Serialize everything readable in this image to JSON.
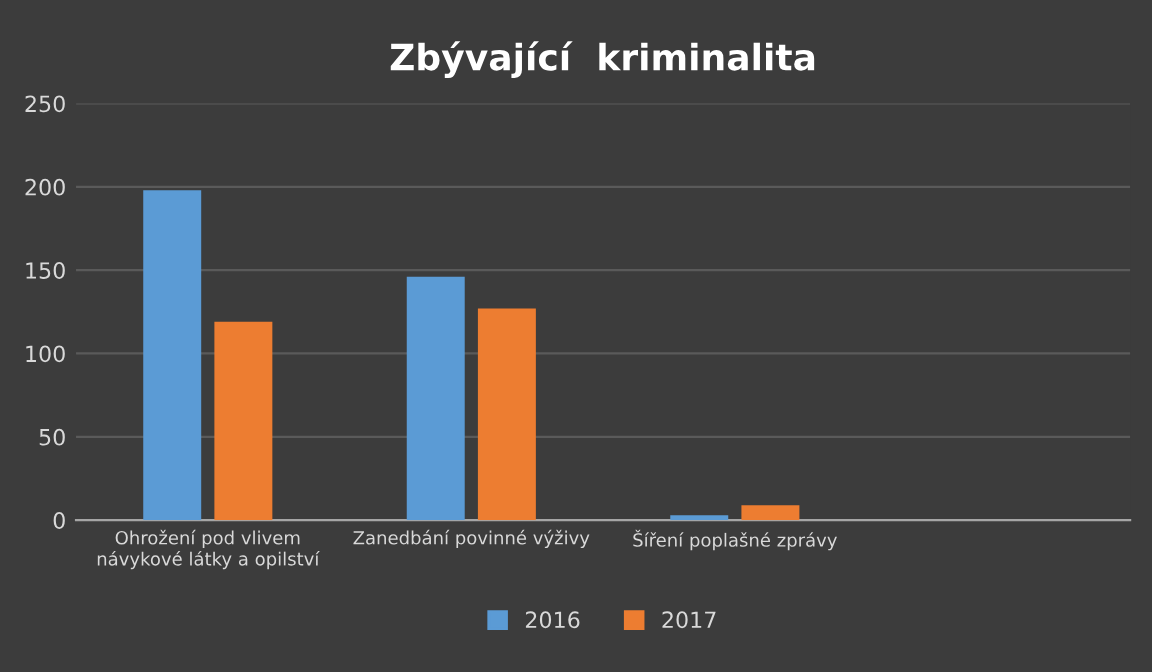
{
  "chart_data": {
    "type": "bar",
    "title": "Zbývající  kriminalita",
    "categories": [
      "Ohrožení pod vlivem\nnávykové látky a opilství",
      "Zanedbání povinné výživy",
      "Šíření poplašné zprávy",
      null
    ],
    "series": [
      {
        "name": "2016",
        "color": "#5b9bd5",
        "values": [
          198,
          146,
          3,
          null
        ]
      },
      {
        "name": "2017",
        "color": "#ed7d31",
        "values": [
          119,
          127,
          9,
          null
        ]
      }
    ],
    "ylim": [
      0,
      250
    ],
    "yticks": [
      0,
      50,
      100,
      150,
      200,
      250
    ],
    "grid": "y",
    "legend": "bottom"
  }
}
